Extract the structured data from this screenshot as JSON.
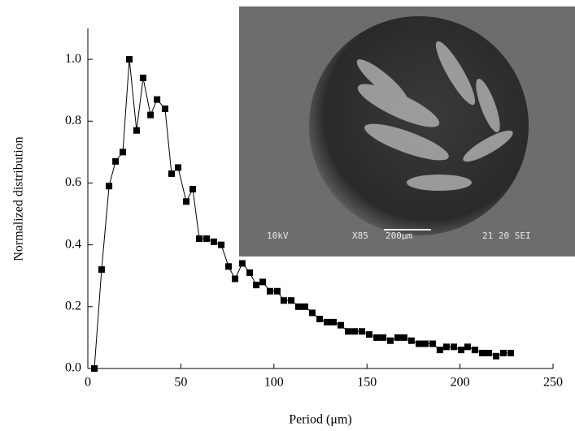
{
  "chart_data": {
    "type": "line",
    "xlabel": "Period (μm)",
    "ylabel": "Normalized distribution",
    "x": [
      3.5,
      7.4,
      11.4,
      14.9,
      18.8,
      22.3,
      26.2,
      29.7,
      33.7,
      37.2,
      41.5,
      45.0,
      48.5,
      52.9,
      56.4,
      59.9,
      63.8,
      67.7,
      71.7,
      75.6,
      79.1,
      83.0,
      87.0,
      90.5,
      94.0,
      97.9,
      101.8,
      105.3,
      109.3,
      113.2,
      116.7,
      120.6,
      124.6,
      128.5,
      132.0,
      135.9,
      139.9,
      143.4,
      147.3,
      151.2,
      155.2,
      158.7,
      162.6,
      166.5,
      170.0,
      173.9,
      177.9,
      181.4,
      185.3,
      189.2,
      192.7,
      196.7,
      200.6,
      204.1,
      208.0,
      212.0,
      215.5,
      219.4,
      223.3,
      227.3
    ],
    "series": [
      {
        "color": "#000000",
        "values": [
          0.0,
          0.32,
          0.59,
          0.67,
          0.7,
          1.0,
          0.77,
          0.94,
          0.82,
          0.87,
          0.84,
          0.63,
          0.65,
          0.54,
          0.58,
          0.42,
          0.42,
          0.41,
          0.4,
          0.33,
          0.29,
          0.34,
          0.31,
          0.27,
          0.28,
          0.25,
          0.25,
          0.22,
          0.22,
          0.2,
          0.2,
          0.18,
          0.16,
          0.15,
          0.15,
          0.14,
          0.12,
          0.12,
          0.12,
          0.11,
          0.1,
          0.1,
          0.09,
          0.1,
          0.1,
          0.09,
          0.08,
          0.08,
          0.08,
          0.06,
          0.07,
          0.07,
          0.06,
          0.07,
          0.06,
          0.05,
          0.05,
          0.04,
          0.05,
          0.05
        ]
      }
    ],
    "xlim": [
      0,
      250
    ],
    "xticks": [
      0,
      50,
      100,
      150,
      200,
      250
    ],
    "ylim": [
      0,
      1.1
    ],
    "yticks": [
      {
        "value": 0,
        "label": "0.0"
      },
      0.2,
      0.4,
      0.6,
      0.8,
      {
        "value": 1,
        "label": "1.0"
      }
    ],
    "inset_labels": [
      "10kV",
      "X85",
      "200μm",
      "21 20 SEI"
    ]
  }
}
